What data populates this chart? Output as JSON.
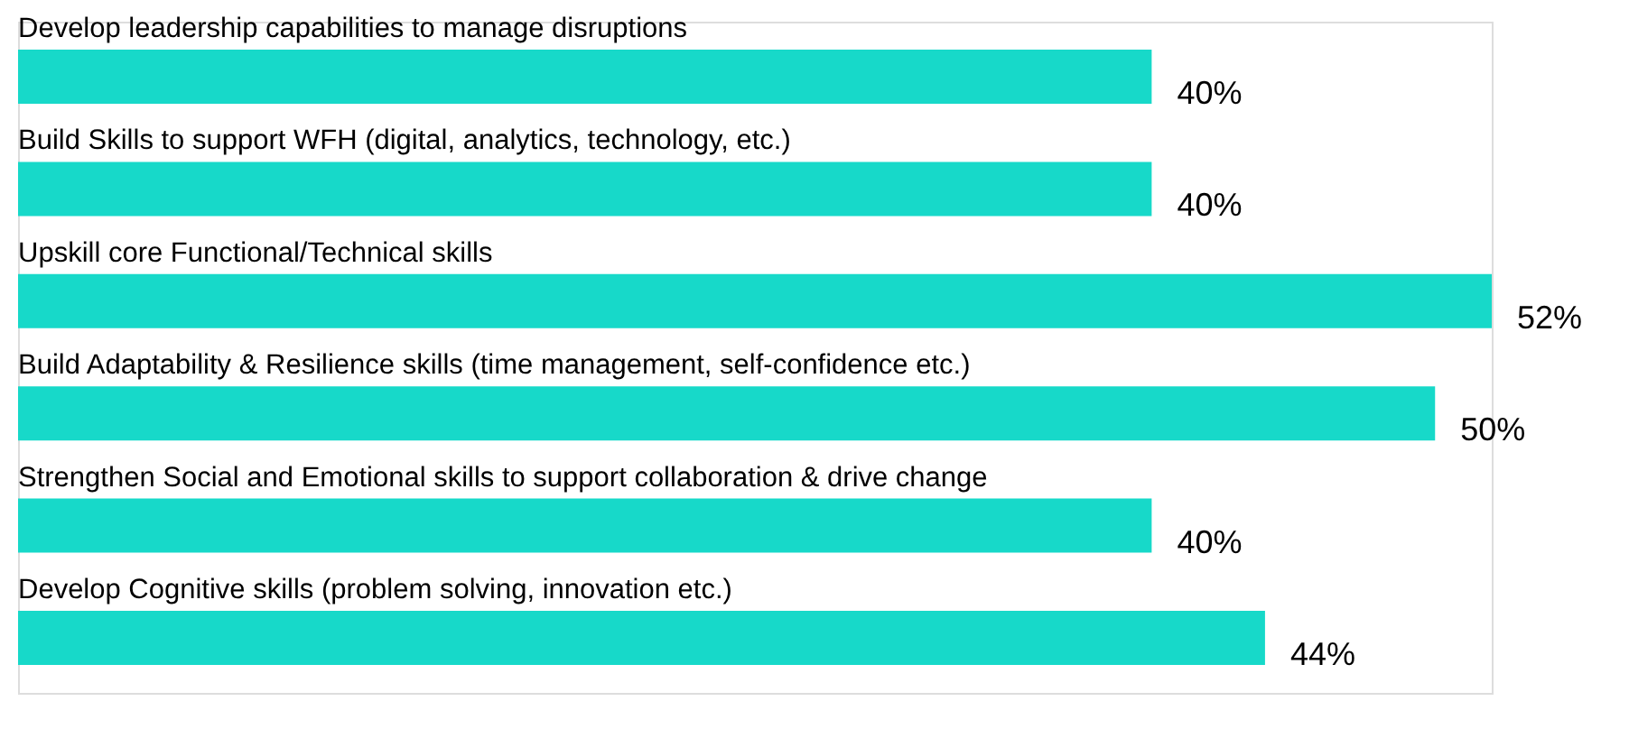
{
  "chart_data": {
    "type": "bar",
    "orientation": "horizontal",
    "categories": [
      "Develop leadership capabilities to manage disruptions",
      "Build Skills to support WFH (digital, analytics, technology, etc.)",
      "Upskill core Functional/Technical skills",
      "Build Adaptability & Resilience skills (time management, self-confidence etc.)",
      "Strengthen Social and Emotional skills to support collaboration & drive change",
      "Develop Cognitive skills (problem solving, innovation etc.)"
    ],
    "values": [
      40,
      40,
      52,
      50,
      40,
      44
    ],
    "value_labels": [
      "40%",
      "40%",
      "52%",
      "50%",
      "40%",
      "44%"
    ],
    "color": "#17d9c9",
    "grid": false
  }
}
